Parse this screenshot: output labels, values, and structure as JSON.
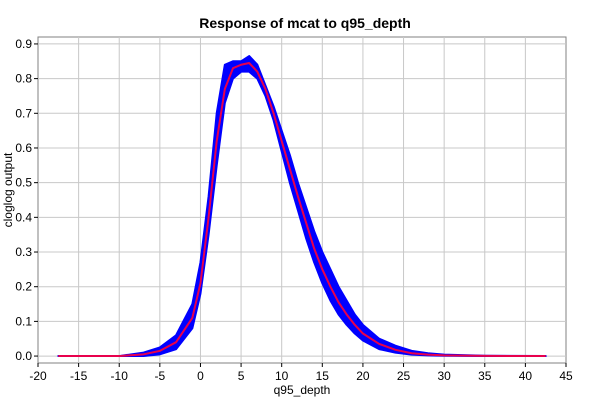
{
  "chart_data": {
    "type": "line",
    "title": "Response of mcat to q95_depth",
    "xlabel": "q95_depth",
    "ylabel": "cloglog output",
    "xlim": [
      -20,
      45
    ],
    "ylim": [
      -0.02,
      0.92
    ],
    "xticks": [
      -20,
      -15,
      -10,
      -5,
      0,
      5,
      10,
      15,
      20,
      25,
      30,
      35,
      40,
      45
    ],
    "yticks": [
      0.0,
      0.1,
      0.2,
      0.3,
      0.4,
      0.5,
      0.6,
      0.7,
      0.8,
      0.9
    ],
    "grid": true,
    "series": [
      {
        "role": "band",
        "color": "#0000ff",
        "x": [
          -17.5,
          -10,
          -7,
          -5,
          -3,
          -1,
          0,
          1,
          2,
          3,
          4,
          5,
          6,
          7,
          8,
          9,
          10,
          11,
          12,
          13,
          14,
          15,
          16,
          17,
          18,
          19,
          20,
          22,
          24,
          26,
          28,
          30,
          35,
          42.5
        ],
        "upper": [
          0.0,
          0.0,
          0.01,
          0.025,
          0.06,
          0.15,
          0.27,
          0.46,
          0.7,
          0.84,
          0.85,
          0.85,
          0.865,
          0.84,
          0.78,
          0.72,
          0.65,
          0.58,
          0.5,
          0.43,
          0.36,
          0.3,
          0.25,
          0.2,
          0.16,
          0.12,
          0.09,
          0.05,
          0.03,
          0.015,
          0.008,
          0.004,
          0.001,
          0.0
        ],
        "lower": [
          0.0,
          0.0,
          0.0,
          0.005,
          0.02,
          0.08,
          0.18,
          0.35,
          0.55,
          0.73,
          0.8,
          0.82,
          0.82,
          0.8,
          0.75,
          0.68,
          0.59,
          0.5,
          0.42,
          0.34,
          0.27,
          0.21,
          0.16,
          0.12,
          0.09,
          0.065,
          0.045,
          0.02,
          0.01,
          0.004,
          0.002,
          0.001,
          0.0,
          0.0
        ]
      },
      {
        "role": "mean",
        "color": "#e8004c",
        "x": [
          -17.5,
          -10,
          -7,
          -5,
          -3,
          -1,
          0,
          1,
          2,
          3,
          4,
          5,
          6,
          7,
          8,
          9,
          10,
          11,
          12,
          13,
          14,
          15,
          16,
          17,
          18,
          19,
          20,
          22,
          24,
          26,
          28,
          30,
          35,
          42.5
        ],
        "y": [
          0.0,
          0.0,
          0.005,
          0.015,
          0.04,
          0.11,
          0.21,
          0.4,
          0.62,
          0.77,
          0.83,
          0.84,
          0.845,
          0.82,
          0.77,
          0.7,
          0.62,
          0.54,
          0.46,
          0.385,
          0.31,
          0.25,
          0.2,
          0.155,
          0.12,
          0.09,
          0.065,
          0.035,
          0.018,
          0.008,
          0.004,
          0.002,
          0.0005,
          0.0
        ]
      }
    ]
  }
}
